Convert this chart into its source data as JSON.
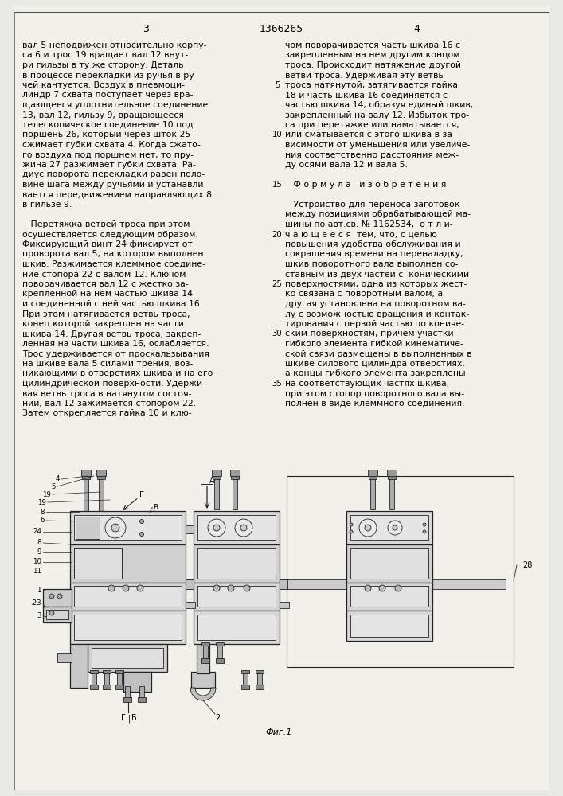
{
  "bg_color": "#e8e8e5",
  "page_color": "#f2f0eb",
  "header_number_left": "3",
  "header_center": "1366265",
  "header_number_right": "4",
  "left_column_lines": [
    "вал 5 неподвижен относительно корпу-",
    "са 6 и трос 19 вращает вал 12 внут-",
    "ри гильзы в ту же сторону. Деталь",
    "в процессе перекладки из ручья в ру-",
    "чей кантуется. Воздух в пневмоци-",
    "линдр 7 схвата поступает через вра-",
    "щающееся уплотнительное соединение",
    "13, вал 12, гильзу 9, вращающееся",
    "телескопическое соединение 10 под",
    "поршень 26, который через шток 25",
    "сжимает губки схвата 4. Когда сжато-",
    "го воздуха под поршнем нет, то пру-",
    "жина 27 разжимает губки схвата. Ра-",
    "диус поворота перекладки равен поло-",
    "вине шага между ручьями и устанавли-",
    "вается передвижением направляющих 8",
    "в гильзе 9.",
    "",
    "   Перетяжка ветвей троса при этом",
    "осуществляется следующим образом.",
    "Фиксирующий винт 24 фиксирует от",
    "проворота вал 5, на котором выполнен",
    "шкив. Разжимается клеммное соедине-",
    "ние стопора 22 с валом 12. Ключом",
    "поворачивается вал 12 с жестко за-",
    "крепленной на нем частью шкива 14",
    "и соединенной с ней частью шкива 16.",
    "При этом натягивается ветвь троса,",
    "конец которой закреплен на части",
    "шкива 14. Другая ветвь троса, закреп-",
    "ленная на части шкива 16, ослабляется.",
    "Трос удерживается от проскальзывания",
    "на шкиве вала 5 силами трения, воз-",
    "никающими в отверстиях шкива и на его",
    "цилиндрической поверхности. Удержи-",
    "вая ветвь троса в натянутом состоя-",
    "нии, вал 12 зажимается стопором 22.",
    "Затем открепляется гайка 10 и клю-"
  ],
  "right_column_lines": [
    "чом поворачивается часть шкива 16 с",
    "закрепленным на нем другим концом",
    "троса. Происходит натяжение другой",
    "ветви троса. Удерживая эту ветвь",
    "троса натянутой, затягивается гайка",
    "18 и часть шкива 16 соединяется с",
    "частью шкива 14, образуя единый шкив,",
    "закрепленный на валу 12. Избыток тро-",
    "са при перетяжке или наматывается,",
    "или сматывается с этого шкива в за-",
    "висимости от уменьшения или увеличе-",
    "ния соответственно расстояния меж-",
    "ду осями вала 12 и вала 5.",
    "",
    "   Ф о р м у л а   и з о б р е т е н и я",
    "",
    "   Устройство для переноса заготовок",
    "между позициями обрабатывающей ма-",
    "шины по авт.св. № 1162534,  о т л и-",
    "ч а ю щ е е с я  тем, что, с целью",
    "повышения удобства обслуживания и",
    "сокращения времени на переналадку,",
    "шкив поворотного вала выполнен со-",
    "ставным из двух частей с  коническими",
    "поверхностями, одна из которых жест-",
    "ко связана с поворотным валом, а",
    "другая установлена на поворотном ва-",
    "лу с возможностью вращения и контак-",
    "тирования с первой частью по кониче-",
    "ским поверхностям, причем участки",
    "гибкого элемента гибкой кинематиче-",
    "ской связи размещены в выполненных в",
    "шкиве силового цилиндра отверстиях,",
    "а концы гибкого элемента закреплены",
    "на соответствующих частях шкива,",
    "при этом стопор поворотного вала вы-",
    "полнен в виде клеммного соединения."
  ],
  "line_numbers": [
    5,
    10,
    15,
    20,
    25,
    30,
    35
  ],
  "line_number_rows": [
    4,
    9,
    14,
    19,
    24,
    29,
    34
  ],
  "figure_caption": "Фиг.1"
}
